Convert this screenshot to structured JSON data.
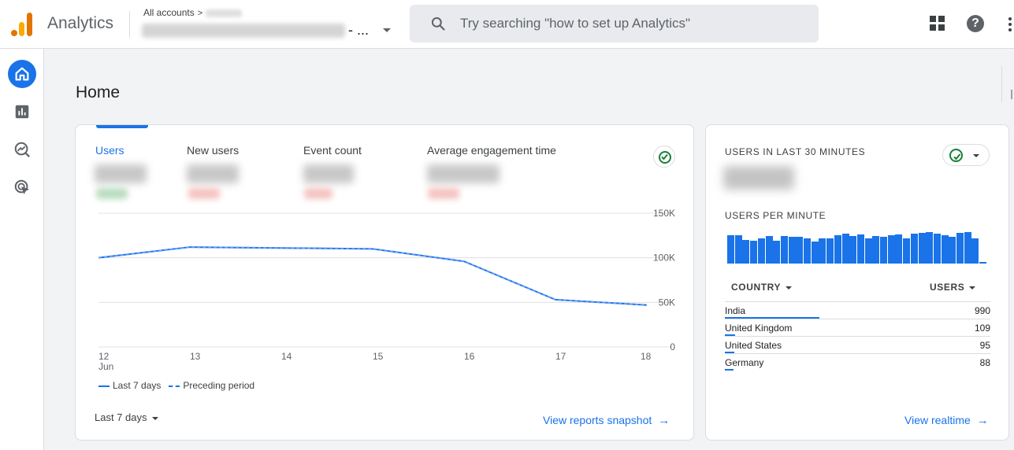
{
  "header": {
    "app_title": "Analytics",
    "breadcrumb": "All accounts",
    "property_suffix": "- ...",
    "search_placeholder": "Try searching \"how to set up Analytics\""
  },
  "page": {
    "title": "Home"
  },
  "overview": {
    "metrics": [
      "Users",
      "New users",
      "Event count",
      "Average engagement time"
    ],
    "active_metric": "Users",
    "date_range": "Last 7 days",
    "view_link": "View reports snapshot",
    "legend": {
      "current": "Last 7 days",
      "previous": "Preceding period"
    }
  },
  "chart_data": {
    "type": "line",
    "x": [
      "12",
      "13",
      "14",
      "15",
      "16",
      "17",
      "18"
    ],
    "x_sublabel": "Jun",
    "series": [
      {
        "name": "Last 7 days",
        "values": [
          100000,
          112000,
          111000,
          110000,
          96000,
          53000,
          47000
        ]
      },
      {
        "name": "Preceding period",
        "values": [
          100000,
          112000,
          111000,
          110000,
          96000,
          53000,
          47000
        ]
      }
    ],
    "y_ticks": [
      "150K",
      "100K",
      "50K",
      "0"
    ],
    "ylim": [
      0,
      150000
    ],
    "grid": true,
    "legend": "bottom-left"
  },
  "realtime": {
    "title": "USERS IN LAST 30 MINUTES",
    "per_minute_title": "USERS PER MINUTE",
    "per_minute_values": [
      33,
      33,
      28,
      27,
      30,
      32,
      27,
      32,
      31,
      31,
      30,
      26,
      30,
      30,
      33,
      35,
      32,
      34,
      30,
      32,
      31,
      33,
      34,
      30,
      35,
      36,
      37,
      35,
      33,
      31,
      36,
      37,
      30,
      2
    ],
    "country_header": "COUNTRY",
    "users_header": "USERS",
    "rows": [
      {
        "country": "India",
        "users": "990",
        "share": 1.0
      },
      {
        "country": "United Kingdom",
        "users": "109",
        "share": 0.11
      },
      {
        "country": "United States",
        "users": "95",
        "share": 0.096
      },
      {
        "country": "Germany",
        "users": "88",
        "share": 0.089
      }
    ],
    "view_link": "View realtime"
  },
  "colors": {
    "accent": "#1a73e8",
    "success": "#188038",
    "logo_orange": "#e37400",
    "logo_yellow": "#f9ab00"
  }
}
